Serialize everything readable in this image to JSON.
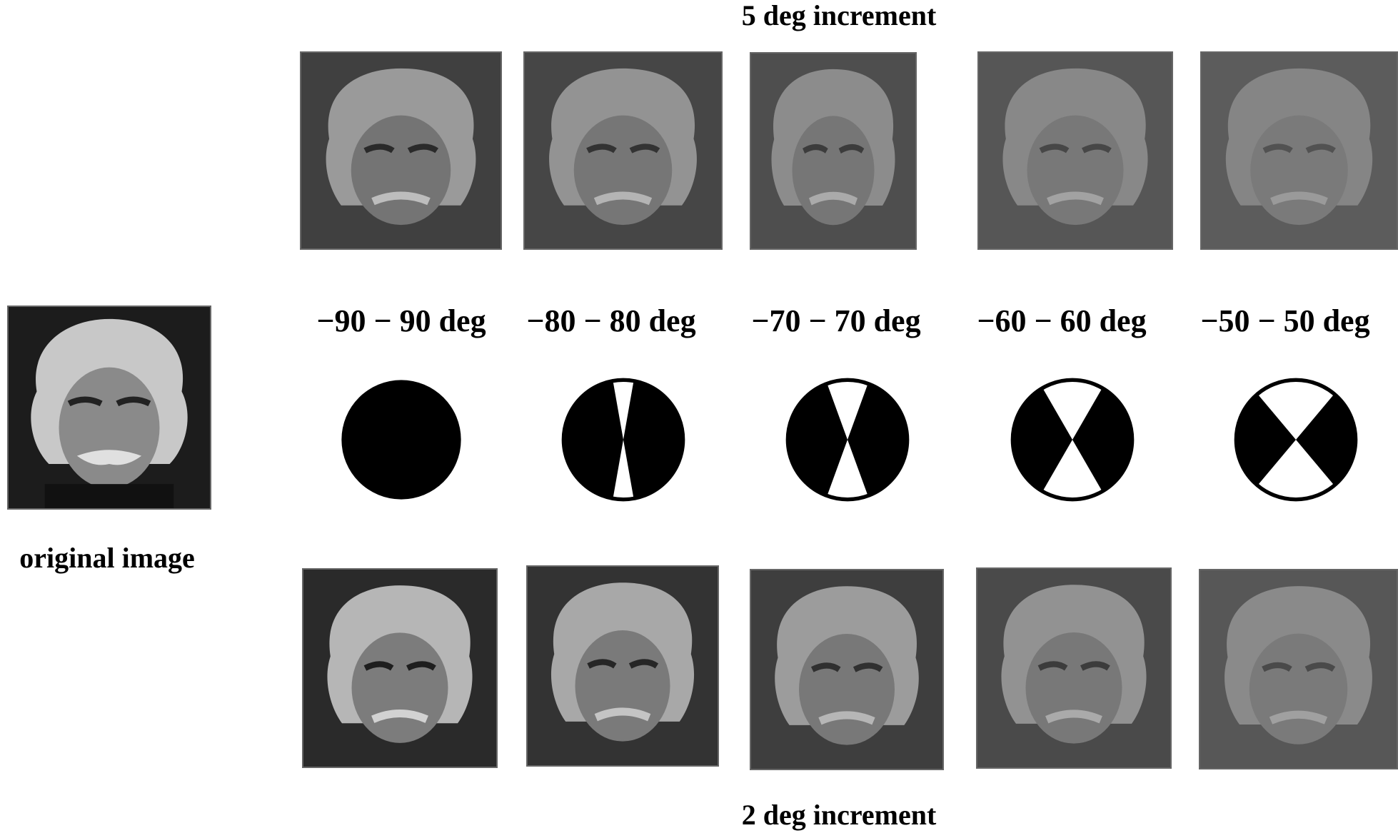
{
  "figure": {
    "top_title": "5 deg increment",
    "bottom_title": "2 deg increment",
    "original_label": "original image",
    "columns": [
      {
        "range_label": "−90 − 90 deg",
        "half_angle_deg": 90
      },
      {
        "range_label": "−80 − 80 deg",
        "half_angle_deg": 80
      },
      {
        "range_label": "−70 − 70 deg",
        "half_angle_deg": 70
      },
      {
        "range_label": "−60 − 60 deg",
        "half_angle_deg": 60
      },
      {
        "range_label": "−50 − 50 deg",
        "half_angle_deg": 50
      }
    ]
  },
  "colors": {
    "mask_fill": "#000000",
    "mask_gap": "#ffffff",
    "background": "#ffffff"
  }
}
